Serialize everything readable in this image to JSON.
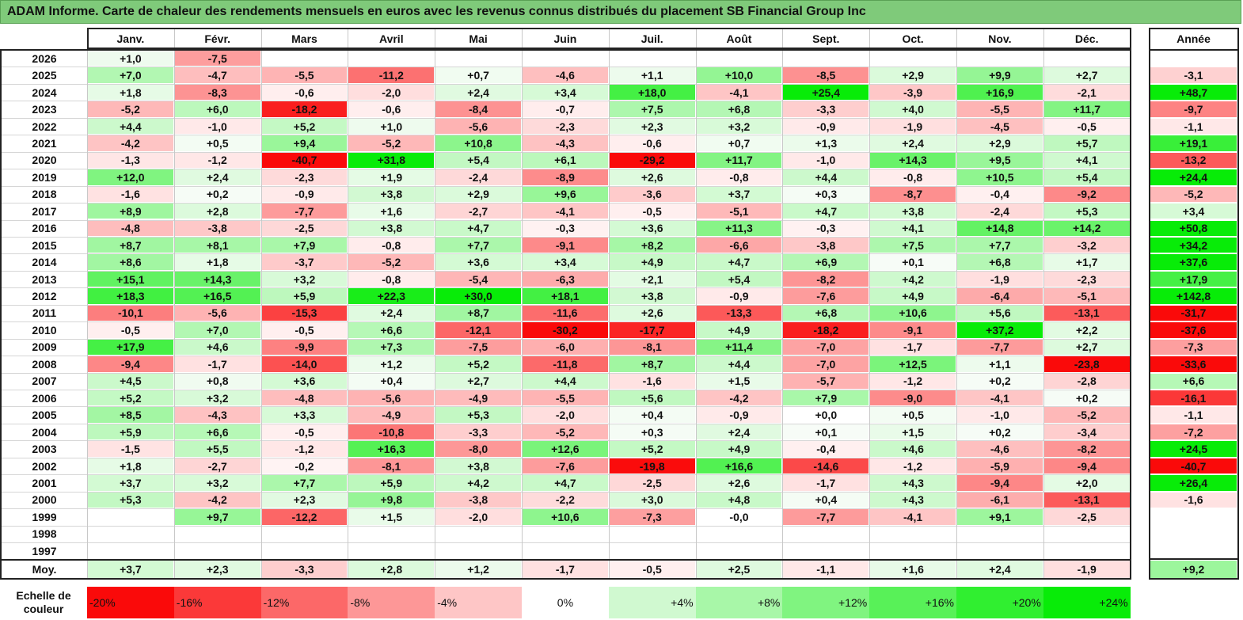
{
  "chart_data": {
    "type": "heatmap",
    "title": "ADAM Informe. Carte de chaleur des rendements mensuels en euros avec les revenus connus distribués du placement SB Financial Group Inc",
    "columns": [
      "Janv.",
      "Févr.",
      "Mars",
      "Avril",
      "Mai",
      "Juin",
      "Juil.",
      "Août",
      "Sept.",
      "Oct.",
      "Nov.",
      "Déc."
    ],
    "year_header": "Année",
    "rows": [
      {
        "year": "2026",
        "values": [
          "+1,0",
          "-7,5",
          "",
          "",
          "",
          "",
          "",
          "",
          "",
          "",
          "",
          ""
        ],
        "annual": ""
      },
      {
        "year": "2025",
        "values": [
          "+7,0",
          "-4,7",
          "-5,5",
          "-11,2",
          "+0,7",
          "-4,6",
          "+1,1",
          "+10,0",
          "-8,5",
          "+2,9",
          "+9,9",
          "+2,7"
        ],
        "annual": "-3,1"
      },
      {
        "year": "2024",
        "values": [
          "+1,8",
          "-8,3",
          "-0,6",
          "-2,0",
          "+2,4",
          "+3,4",
          "+18,0",
          "-4,1",
          "+25,4",
          "-3,9",
          "+16,9",
          "-2,1"
        ],
        "annual": "+48,7"
      },
      {
        "year": "2023",
        "values": [
          "-5,2",
          "+6,0",
          "-18,2",
          "-0,6",
          "-8,4",
          "-0,7",
          "+7,5",
          "+6,8",
          "-3,3",
          "+4,0",
          "-5,5",
          "+11,7"
        ],
        "annual": "-9,7"
      },
      {
        "year": "2022",
        "values": [
          "+4,4",
          "-1,0",
          "+5,2",
          "+1,0",
          "-5,6",
          "-2,3",
          "+2,3",
          "+3,2",
          "-0,9",
          "-1,9",
          "-4,5",
          "-0,5"
        ],
        "annual": "-1,1"
      },
      {
        "year": "2021",
        "values": [
          "-4,2",
          "+0,5",
          "+9,4",
          "-5,2",
          "+10,8",
          "-4,3",
          "-0,6",
          "+0,7",
          "+1,3",
          "+2,4",
          "+2,9",
          "+5,7"
        ],
        "annual": "+19,1"
      },
      {
        "year": "2020",
        "values": [
          "-1,3",
          "-1,2",
          "-40,7",
          "+31,8",
          "+5,4",
          "+6,1",
          "-29,2",
          "+11,7",
          "-1,0",
          "+14,3",
          "+9,5",
          "+4,1"
        ],
        "annual": "-13,2"
      },
      {
        "year": "2019",
        "values": [
          "+12,0",
          "+2,4",
          "-2,3",
          "+1,9",
          "-2,4",
          "-8,9",
          "+2,6",
          "-0,8",
          "+4,4",
          "-0,8",
          "+10,5",
          "+5,4"
        ],
        "annual": "+24,4"
      },
      {
        "year": "2018",
        "values": [
          "-1,6",
          "+0,2",
          "-0,9",
          "+3,8",
          "+2,9",
          "+9,6",
          "-3,6",
          "+3,7",
          "+0,3",
          "-8,7",
          "-0,4",
          "-9,2"
        ],
        "annual": "-5,2"
      },
      {
        "year": "2017",
        "values": [
          "+8,9",
          "+2,8",
          "-7,7",
          "+1,6",
          "-2,7",
          "-4,1",
          "-0,5",
          "-5,1",
          "+4,7",
          "+3,8",
          "-2,4",
          "+5,3"
        ],
        "annual": "+3,4"
      },
      {
        "year": "2016",
        "values": [
          "-4,8",
          "-3,8",
          "-2,5",
          "+3,8",
          "+4,7",
          "-0,3",
          "+3,6",
          "+11,3",
          "-0,3",
          "+4,1",
          "+14,8",
          "+14,2"
        ],
        "annual": "+50,8"
      },
      {
        "year": "2015",
        "values": [
          "+8,7",
          "+8,1",
          "+7,9",
          "-0,8",
          "+7,7",
          "-9,1",
          "+8,2",
          "-6,6",
          "-3,8",
          "+7,5",
          "+7,7",
          "-3,2"
        ],
        "annual": "+34,2"
      },
      {
        "year": "2014",
        "values": [
          "+8,6",
          "+1,8",
          "-3,7",
          "-5,2",
          "+3,6",
          "+3,4",
          "+4,9",
          "+4,7",
          "+6,9",
          "+0,1",
          "+6,8",
          "+1,7"
        ],
        "annual": "+37,6"
      },
      {
        "year": "2013",
        "values": [
          "+15,1",
          "+14,3",
          "+3,2",
          "-0,8",
          "-5,4",
          "-6,3",
          "+2,1",
          "+5,4",
          "-8,2",
          "+4,2",
          "-1,9",
          "-2,3"
        ],
        "annual": "+17,9"
      },
      {
        "year": "2012",
        "values": [
          "+18,3",
          "+16,5",
          "+5,9",
          "+22,3",
          "+30,0",
          "+18,1",
          "+3,8",
          "-0,9",
          "-7,6",
          "+4,9",
          "-6,4",
          "-5,1"
        ],
        "annual": "+142,8"
      },
      {
        "year": "2011",
        "values": [
          "-10,1",
          "-5,6",
          "-15,3",
          "+2,4",
          "+8,7",
          "-11,6",
          "+2,6",
          "-13,3",
          "+6,8",
          "+10,6",
          "+5,6",
          "-13,1"
        ],
        "annual": "-31,7"
      },
      {
        "year": "2010",
        "values": [
          "-0,5",
          "+7,0",
          "-0,5",
          "+6,6",
          "-12,1",
          "-30,2",
          "-17,7",
          "+4,9",
          "-18,2",
          "-9,1",
          "+37,2",
          "+2,2"
        ],
        "annual": "-37,6"
      },
      {
        "year": "2009",
        "values": [
          "+17,9",
          "+4,6",
          "-9,9",
          "+7,3",
          "-7,5",
          "-6,0",
          "-8,1",
          "+11,4",
          "-7,0",
          "-1,7",
          "-7,7",
          "+2,7"
        ],
        "annual": "-7,3"
      },
      {
        "year": "2008",
        "values": [
          "-9,4",
          "-1,7",
          "-14,0",
          "+1,2",
          "+5,2",
          "-11,8",
          "+8,7",
          "+4,4",
          "-7,0",
          "+12,5",
          "+1,1",
          "-23,8"
        ],
        "annual": "-33,6"
      },
      {
        "year": "2007",
        "values": [
          "+4,5",
          "+0,8",
          "+3,6",
          "+0,4",
          "+2,7",
          "+4,4",
          "-1,6",
          "+1,5",
          "-5,7",
          "-1,2",
          "+0,2",
          "-2,8"
        ],
        "annual": "+6,6"
      },
      {
        "year": "2006",
        "values": [
          "+5,2",
          "+3,2",
          "-4,8",
          "-5,6",
          "-4,9",
          "-5,5",
          "+5,6",
          "-4,2",
          "+7,9",
          "-9,0",
          "-4,1",
          "+0,2"
        ],
        "annual": "-16,1"
      },
      {
        "year": "2005",
        "values": [
          "+8,5",
          "-4,3",
          "+3,3",
          "-4,9",
          "+5,3",
          "-2,0",
          "+0,4",
          "-0,9",
          "+0,0",
          "+0,5",
          "-1,0",
          "-5,2"
        ],
        "annual": "-1,1"
      },
      {
        "year": "2004",
        "values": [
          "+5,9",
          "+6,6",
          "-0,5",
          "-10,8",
          "-3,3",
          "-5,2",
          "+0,3",
          "+2,4",
          "+0,1",
          "+1,5",
          "+0,2",
          "-3,4"
        ],
        "annual": "-7,2"
      },
      {
        "year": "2003",
        "values": [
          "-1,5",
          "+5,5",
          "-1,2",
          "+16,3",
          "-8,0",
          "+12,6",
          "+5,2",
          "+4,9",
          "-0,4",
          "+4,6",
          "-4,6",
          "-8,2"
        ],
        "annual": "+24,5"
      },
      {
        "year": "2002",
        "values": [
          "+1,8",
          "-2,7",
          "-0,2",
          "-8,1",
          "+3,8",
          "-7,6",
          "-19,8",
          "+16,6",
          "-14,6",
          "-1,2",
          "-5,9",
          "-9,4"
        ],
        "annual": "-40,7"
      },
      {
        "year": "2001",
        "values": [
          "+3,7",
          "+3,2",
          "+7,7",
          "+5,9",
          "+4,2",
          "+4,7",
          "-2,5",
          "+2,6",
          "-1,7",
          "+4,3",
          "-9,4",
          "+2,0"
        ],
        "annual": "+26,4"
      },
      {
        "year": "2000",
        "values": [
          "+5,3",
          "-4,2",
          "+2,3",
          "+9,8",
          "-3,8",
          "-2,2",
          "+3,0",
          "+4,8",
          "+0,4",
          "+4,3",
          "-6,1",
          "-13,1"
        ],
        "annual": "-1,6"
      },
      {
        "year": "1999",
        "values": [
          "",
          "+9,7",
          "-12,2",
          "+1,5",
          "-2,0",
          "+10,6",
          "-7,3",
          "-0,0",
          "-7,7",
          "-4,1",
          "+9,1",
          "-2,5"
        ],
        "annual": ""
      },
      {
        "year": "1998",
        "values": [
          "",
          "",
          "",
          "",
          "",
          "",
          "",
          "",
          "",
          "",
          "",
          ""
        ],
        "annual": ""
      },
      {
        "year": "1997",
        "values": [
          "",
          "",
          "",
          "",
          "",
          "",
          "",
          "",
          "",
          "",
          "",
          ""
        ],
        "annual": ""
      }
    ],
    "average": {
      "label": "Moy.",
      "values": [
        "+3,7",
        "+2,3",
        "-3,3",
        "+2,8",
        "+1,2",
        "-1,7",
        "-0,5",
        "+2,5",
        "-1,1",
        "+1,6",
        "+2,4",
        "-1,9"
      ],
      "annual": "+9,2"
    },
    "scale": {
      "label": "Echelle de couleur",
      "labels": [
        "-20%",
        "-16%",
        "-12%",
        "-8%",
        "-4%",
        "0%",
        "+4%",
        "+8%",
        "+12%",
        "+16%",
        "+20%",
        "+24%"
      ],
      "values": [
        -20,
        -16,
        -12,
        -8,
        -4,
        0,
        4,
        8,
        12,
        16,
        20,
        24
      ]
    }
  }
}
